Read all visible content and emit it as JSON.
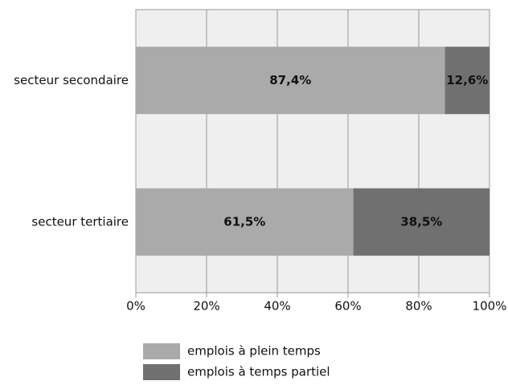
{
  "chart_data": {
    "type": "stacked_barh",
    "categories": [
      "secteur secondaire",
      "secteur tertiaire"
    ],
    "series": [
      {
        "name": "emplois à plein temps",
        "color": "#aaaaaa",
        "values": [
          87.4,
          61.5
        ],
        "value_labels": [
          "87,4%",
          "61,5%"
        ]
      },
      {
        "name": "emplois à temps partiel",
        "color": "#707070",
        "values": [
          12.6,
          38.5
        ],
        "value_labels": [
          "12,6%",
          "38,5%"
        ]
      }
    ],
    "xlim": [
      0,
      100
    ],
    "xticks": [
      {
        "value": 0,
        "label": "0%"
      },
      {
        "value": 20,
        "label": "20%"
      },
      {
        "value": 40,
        "label": "40%"
      },
      {
        "value": 60,
        "label": "60%"
      },
      {
        "value": 80,
        "label": "80%"
      },
      {
        "value": 100,
        "label": "100%"
      }
    ],
    "grid": true
  }
}
